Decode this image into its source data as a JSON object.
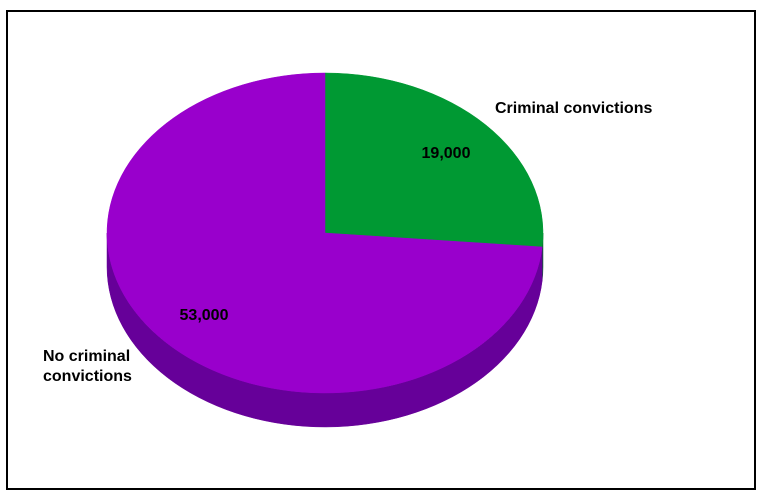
{
  "chart_data": {
    "type": "pie",
    "title": "",
    "slices": [
      {
        "label": "Criminal convictions",
        "value": 19000,
        "value_label": "19,000",
        "color": "#009933",
        "side_color": "#006622"
      },
      {
        "label": "No criminal convictions",
        "label_lines": [
          "No criminal",
          "convictions"
        ],
        "value": 53000,
        "value_label": "53,000",
        "color": "#9900CC",
        "side_color": "#660099"
      }
    ],
    "style": "3d",
    "legend": "none"
  }
}
